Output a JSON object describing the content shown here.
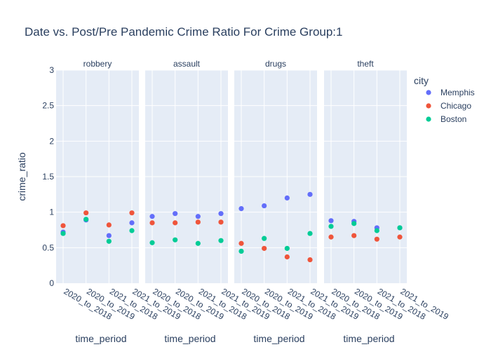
{
  "chart_data": {
    "type": "scatter",
    "title": "Date vs. Post/Pre Pandemic Crime Ratio For Crime Group:1",
    "xlabel": "time_period",
    "ylabel": "crime_ratio",
    "ylim": [
      0,
      3
    ],
    "yticks": [
      0,
      0.5,
      1,
      1.5,
      2,
      2.5,
      3
    ],
    "ytick_labels": [
      "0",
      "0.5",
      "1",
      "1.5",
      "2",
      "2.5",
      "3"
    ],
    "grid": true,
    "legend": {
      "title": "city",
      "placement": "right"
    },
    "categories": [
      "2020_to_2018",
      "2020_to_2019",
      "2021_to_2018",
      "2021_to_2019"
    ],
    "facets": [
      "robbery",
      "assault",
      "drugs",
      "theft"
    ],
    "series": [
      {
        "name": "Memphis",
        "color": "#636efa",
        "values": {
          "robbery": [
            0.72,
            0.89,
            0.67,
            0.85
          ],
          "assault": [
            0.94,
            0.98,
            0.94,
            0.98
          ],
          "drugs": [
            1.05,
            1.09,
            1.2,
            1.25
          ],
          "theft": [
            0.88,
            0.87,
            0.78,
            0.78
          ]
        }
      },
      {
        "name": "Chicago",
        "color": "#EF553B",
        "values": {
          "robbery": [
            0.81,
            0.99,
            0.82,
            0.99
          ],
          "assault": [
            0.85,
            0.85,
            0.86,
            0.86
          ],
          "drugs": [
            0.56,
            0.49,
            0.37,
            0.33
          ],
          "theft": [
            0.65,
            0.67,
            0.62,
            0.65
          ]
        }
      },
      {
        "name": "Boston",
        "color": "#00cc96",
        "values": {
          "robbery": [
            0.7,
            0.9,
            0.59,
            0.74
          ],
          "assault": [
            0.57,
            0.61,
            0.56,
            0.6
          ],
          "drugs": [
            0.45,
            0.63,
            0.49,
            0.7
          ],
          "theft": [
            0.8,
            0.84,
            0.74,
            0.78
          ]
        }
      }
    ]
  }
}
